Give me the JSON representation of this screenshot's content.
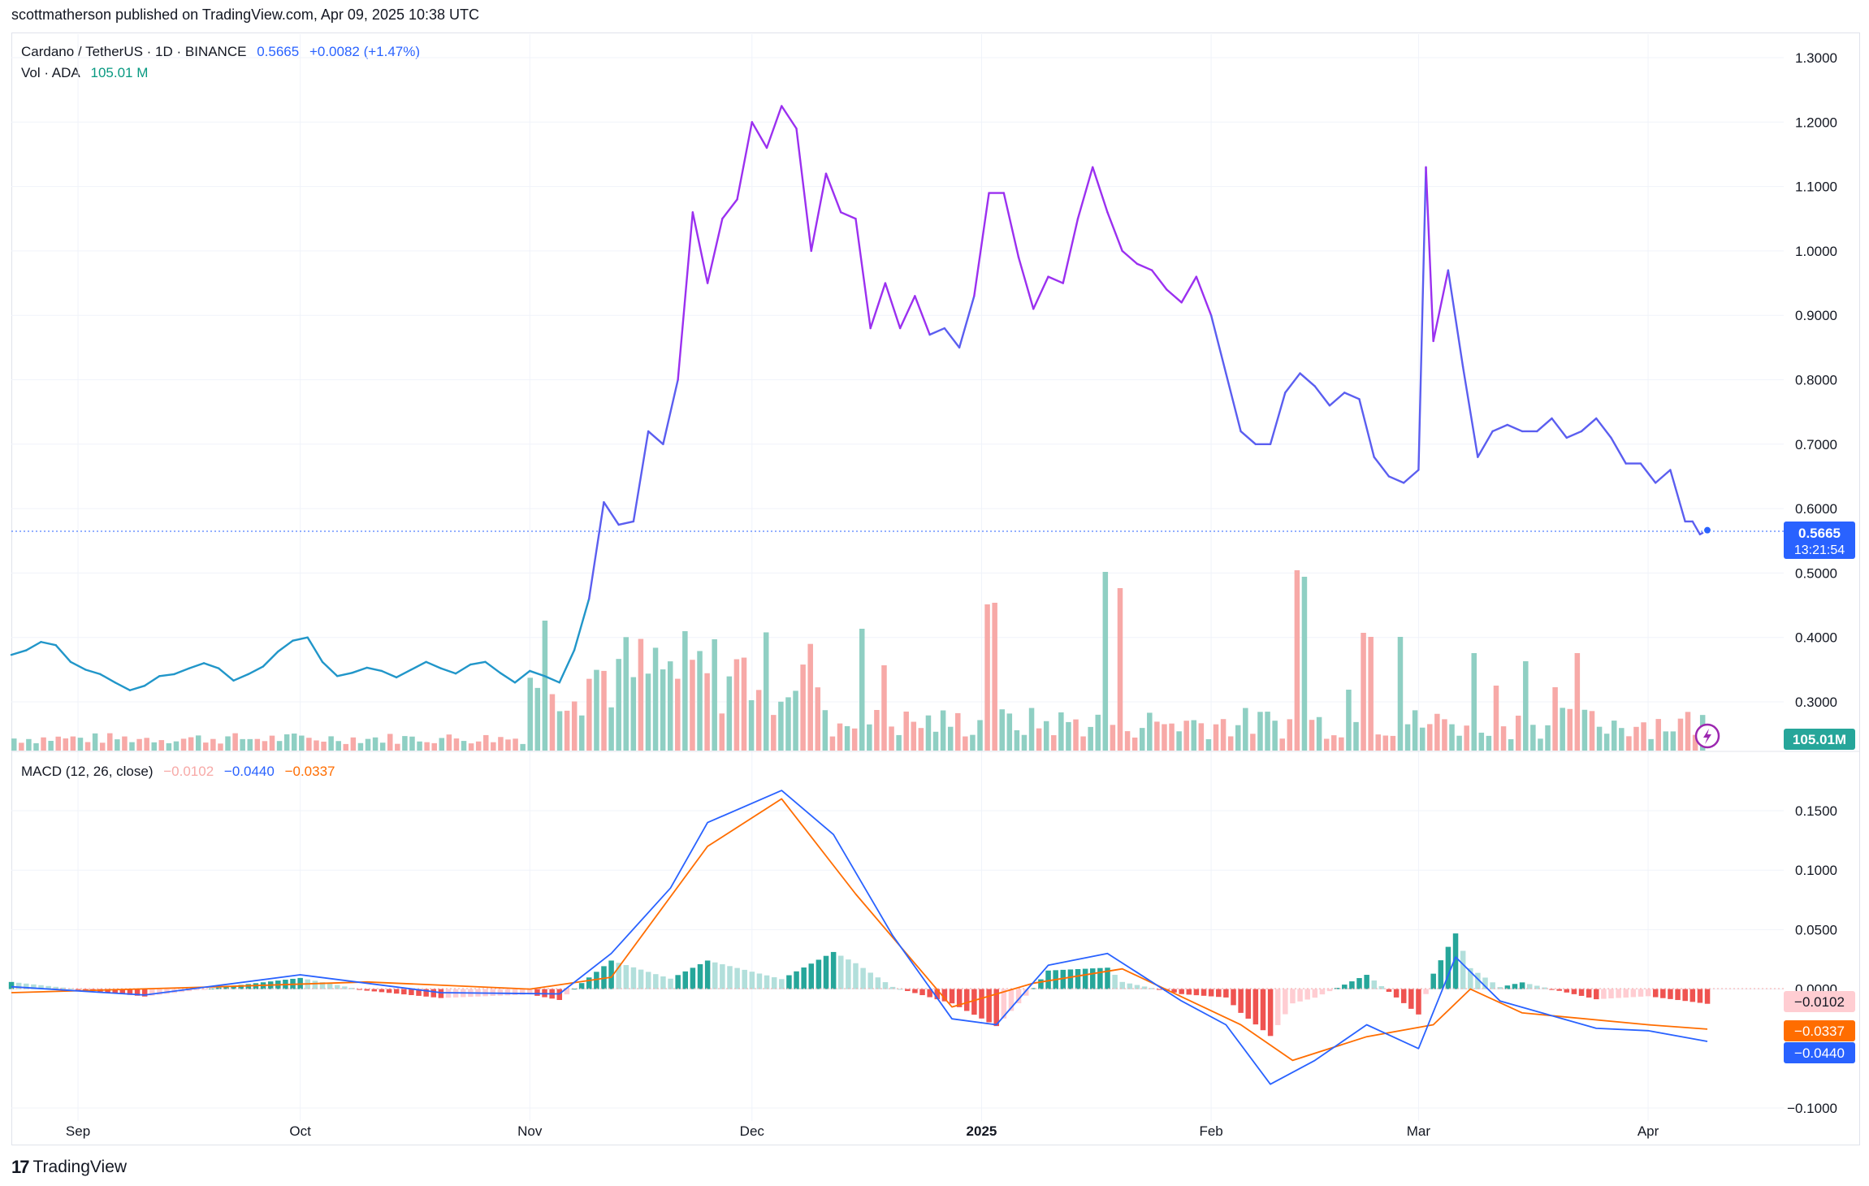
{
  "header": {
    "publish_line": "scottmatherson published on TradingView.com, Apr 09, 2025 10:38 UTC"
  },
  "legend": {
    "symbol": "Cardano / TetherUS · 1D · BINANCE",
    "price": "0.5665",
    "change": "+0.0082 (+1.47%)",
    "vol_label": "Vol · ADA",
    "vol_value": "105.01 M",
    "macd_label": "MACD (12, 26, close)",
    "macd_hist": "−0.0102",
    "macd_line": "−0.0440",
    "macd_signal": "−0.0337"
  },
  "price_badge": {
    "price": "0.5665",
    "countdown": "13:21:54"
  },
  "vol_badge": "105.01M",
  "macd_badges": {
    "hist": "−0.0102",
    "signal": "−0.0337",
    "macd": "−0.0440"
  },
  "footer": {
    "brand": "TradingView",
    "logo_mark": "17"
  },
  "colors": {
    "price_low": "#2196c9",
    "price_mid": "#5b5ef0",
    "price_high": "#9b30f0",
    "vol_up": "#8fcfc3",
    "vol_down": "#f7a9a7",
    "macd_line": "#2962ff",
    "signal_line": "#ff6d00",
    "hist_up_strong": "#26a69a",
    "hist_up_weak": "#b2dfdb",
    "hist_down_strong": "#ef5350",
    "hist_down_weak": "#ffcdd2"
  },
  "chart_data": {
    "type": "line",
    "title": "Cardano / TetherUS · 1D · BINANCE",
    "x_axis": {
      "labels": [
        "Sep",
        "Oct",
        "Nov",
        "Dec",
        "2025",
        "Feb",
        "Mar",
        "Apr"
      ]
    },
    "price_axis": {
      "ticks": [
        "1.3000",
        "1.2000",
        "1.1000",
        "1.0000",
        "0.9000",
        "0.8000",
        "0.7000",
        "0.6000",
        "0.5000",
        "0.4000",
        "0.3000"
      ],
      "ylim": [
        0.25,
        1.32
      ]
    },
    "macd_axis": {
      "ticks": [
        "0.1500",
        "0.1000",
        "0.0500",
        "0.0000",
        "−0.1000"
      ],
      "ylim": [
        -0.1,
        0.17
      ]
    },
    "last_price": 0.5665,
    "price_series": [
      {
        "x": "2024-08-23",
        "y": 0.373
      },
      {
        "x": "2024-08-25",
        "y": 0.38
      },
      {
        "x": "2024-08-27",
        "y": 0.393
      },
      {
        "x": "2024-08-29",
        "y": 0.388
      },
      {
        "x": "2024-08-31",
        "y": 0.362
      },
      {
        "x": "2024-09-02",
        "y": 0.35
      },
      {
        "x": "2024-09-04",
        "y": 0.343
      },
      {
        "x": "2024-09-06",
        "y": 0.33
      },
      {
        "x": "2024-09-08",
        "y": 0.318
      },
      {
        "x": "2024-09-10",
        "y": 0.325
      },
      {
        "x": "2024-09-12",
        "y": 0.34
      },
      {
        "x": "2024-09-14",
        "y": 0.343
      },
      {
        "x": "2024-09-16",
        "y": 0.352
      },
      {
        "x": "2024-09-18",
        "y": 0.36
      },
      {
        "x": "2024-09-20",
        "y": 0.352
      },
      {
        "x": "2024-09-22",
        "y": 0.333
      },
      {
        "x": "2024-09-24",
        "y": 0.343
      },
      {
        "x": "2024-09-26",
        "y": 0.355
      },
      {
        "x": "2024-09-28",
        "y": 0.378
      },
      {
        "x": "2024-09-30",
        "y": 0.395
      },
      {
        "x": "2024-10-02",
        "y": 0.4
      },
      {
        "x": "2024-10-04",
        "y": 0.362
      },
      {
        "x": "2024-10-06",
        "y": 0.34
      },
      {
        "x": "2024-10-08",
        "y": 0.345
      },
      {
        "x": "2024-10-10",
        "y": 0.353
      },
      {
        "x": "2024-10-12",
        "y": 0.348
      },
      {
        "x": "2024-10-14",
        "y": 0.338
      },
      {
        "x": "2024-10-16",
        "y": 0.35
      },
      {
        "x": "2024-10-18",
        "y": 0.362
      },
      {
        "x": "2024-10-20",
        "y": 0.352
      },
      {
        "x": "2024-10-22",
        "y": 0.344
      },
      {
        "x": "2024-10-24",
        "y": 0.358
      },
      {
        "x": "2024-10-26",
        "y": 0.362
      },
      {
        "x": "2024-10-28",
        "y": 0.345
      },
      {
        "x": "2024-10-30",
        "y": 0.33
      },
      {
        "x": "2024-11-01",
        "y": 0.348
      },
      {
        "x": "2024-11-03",
        "y": 0.34
      },
      {
        "x": "2024-11-05",
        "y": 0.33
      },
      {
        "x": "2024-11-07",
        "y": 0.38
      },
      {
        "x": "2024-11-09",
        "y": 0.46
      },
      {
        "x": "2024-11-11",
        "y": 0.61
      },
      {
        "x": "2024-11-13",
        "y": 0.575
      },
      {
        "x": "2024-11-15",
        "y": 0.58
      },
      {
        "x": "2024-11-17",
        "y": 0.72
      },
      {
        "x": "2024-11-19",
        "y": 0.7
      },
      {
        "x": "2024-11-21",
        "y": 0.8
      },
      {
        "x": "2024-11-23",
        "y": 1.06
      },
      {
        "x": "2024-11-25",
        "y": 0.95
      },
      {
        "x": "2024-11-27",
        "y": 1.05
      },
      {
        "x": "2024-11-29",
        "y": 1.08
      },
      {
        "x": "2024-12-01",
        "y": 1.2
      },
      {
        "x": "2024-12-03",
        "y": 1.16
      },
      {
        "x": "2024-12-05",
        "y": 1.225
      },
      {
        "x": "2024-12-07",
        "y": 1.19
      },
      {
        "x": "2024-12-09",
        "y": 1.0
      },
      {
        "x": "2024-12-11",
        "y": 1.12
      },
      {
        "x": "2024-12-13",
        "y": 1.06
      },
      {
        "x": "2024-12-15",
        "y": 1.05
      },
      {
        "x": "2024-12-17",
        "y": 0.88
      },
      {
        "x": "2024-12-19",
        "y": 0.95
      },
      {
        "x": "2024-12-21",
        "y": 0.88
      },
      {
        "x": "2024-12-23",
        "y": 0.93
      },
      {
        "x": "2024-12-25",
        "y": 0.87
      },
      {
        "x": "2024-12-27",
        "y": 0.88
      },
      {
        "x": "2024-12-29",
        "y": 0.85
      },
      {
        "x": "2024-12-31",
        "y": 0.93
      },
      {
        "x": "2025-01-02",
        "y": 1.09
      },
      {
        "x": "2025-01-04",
        "y": 1.09
      },
      {
        "x": "2025-01-06",
        "y": 0.99
      },
      {
        "x": "2025-01-08",
        "y": 0.91
      },
      {
        "x": "2025-01-10",
        "y": 0.96
      },
      {
        "x": "2025-01-12",
        "y": 0.95
      },
      {
        "x": "2025-01-14",
        "y": 1.05
      },
      {
        "x": "2025-01-16",
        "y": 1.13
      },
      {
        "x": "2025-01-18",
        "y": 1.06
      },
      {
        "x": "2025-01-20",
        "y": 1.0
      },
      {
        "x": "2025-01-22",
        "y": 0.98
      },
      {
        "x": "2025-01-24",
        "y": 0.97
      },
      {
        "x": "2025-01-26",
        "y": 0.94
      },
      {
        "x": "2025-01-28",
        "y": 0.92
      },
      {
        "x": "2025-01-30",
        "y": 0.96
      },
      {
        "x": "2025-02-01",
        "y": 0.9
      },
      {
        "x": "2025-02-03",
        "y": 0.81
      },
      {
        "x": "2025-02-05",
        "y": 0.72
      },
      {
        "x": "2025-02-07",
        "y": 0.7
      },
      {
        "x": "2025-02-09",
        "y": 0.7
      },
      {
        "x": "2025-02-11",
        "y": 0.78
      },
      {
        "x": "2025-02-13",
        "y": 0.81
      },
      {
        "x": "2025-02-15",
        "y": 0.79
      },
      {
        "x": "2025-02-17",
        "y": 0.76
      },
      {
        "x": "2025-02-19",
        "y": 0.78
      },
      {
        "x": "2025-02-21",
        "y": 0.77
      },
      {
        "x": "2025-02-23",
        "y": 0.68
      },
      {
        "x": "2025-02-25",
        "y": 0.65
      },
      {
        "x": "2025-02-27",
        "y": 0.64
      },
      {
        "x": "2025-03-01",
        "y": 0.66
      },
      {
        "x": "2025-03-02",
        "y": 1.13
      },
      {
        "x": "2025-03-03",
        "y": 0.86
      },
      {
        "x": "2025-03-05",
        "y": 0.97
      },
      {
        "x": "2025-03-07",
        "y": 0.82
      },
      {
        "x": "2025-03-09",
        "y": 0.68
      },
      {
        "x": "2025-03-11",
        "y": 0.72
      },
      {
        "x": "2025-03-13",
        "y": 0.73
      },
      {
        "x": "2025-03-15",
        "y": 0.72
      },
      {
        "x": "2025-03-17",
        "y": 0.72
      },
      {
        "x": "2025-03-19",
        "y": 0.74
      },
      {
        "x": "2025-03-21",
        "y": 0.71
      },
      {
        "x": "2025-03-23",
        "y": 0.72
      },
      {
        "x": "2025-03-25",
        "y": 0.74
      },
      {
        "x": "2025-03-27",
        "y": 0.71
      },
      {
        "x": "2025-03-29",
        "y": 0.67
      },
      {
        "x": "2025-03-31",
        "y": 0.67
      },
      {
        "x": "2025-04-02",
        "y": 0.64
      },
      {
        "x": "2025-04-04",
        "y": 0.66
      },
      {
        "x": "2025-04-06",
        "y": 0.58
      },
      {
        "x": "2025-04-07",
        "y": 0.58
      },
      {
        "x": "2025-04-08",
        "y": 0.56
      },
      {
        "x": "2025-04-09",
        "y": 0.5665
      }
    ],
    "macd_series": {
      "macd": [
        {
          "x": "2024-08-23",
          "y": 0.002
        },
        {
          "x": "2024-09-10",
          "y": -0.005
        },
        {
          "x": "2024-10-01",
          "y": 0.012
        },
        {
          "x": "2024-10-20",
          "y": -0.003
        },
        {
          "x": "2024-11-05",
          "y": -0.004
        },
        {
          "x": "2024-11-12",
          "y": 0.03
        },
        {
          "x": "2024-11-20",
          "y": 0.085
        },
        {
          "x": "2024-11-25",
          "y": 0.14
        },
        {
          "x": "2024-12-05",
          "y": 0.167
        },
        {
          "x": "2024-12-12",
          "y": 0.13
        },
        {
          "x": "2024-12-20",
          "y": 0.045
        },
        {
          "x": "2024-12-28",
          "y": -0.025
        },
        {
          "x": "2025-01-03",
          "y": -0.03
        },
        {
          "x": "2025-01-10",
          "y": 0.02
        },
        {
          "x": "2025-01-18",
          "y": 0.03
        },
        {
          "x": "2025-01-28",
          "y": -0.01
        },
        {
          "x": "2025-02-03",
          "y": -0.03
        },
        {
          "x": "2025-02-09",
          "y": -0.08
        },
        {
          "x": "2025-02-15",
          "y": -0.06
        },
        {
          "x": "2025-02-22",
          "y": -0.03
        },
        {
          "x": "2025-03-01",
          "y": -0.05
        },
        {
          "x": "2025-03-06",
          "y": 0.027
        },
        {
          "x": "2025-03-12",
          "y": -0.01
        },
        {
          "x": "2025-03-25",
          "y": -0.033
        },
        {
          "x": "2025-04-01",
          "y": -0.035
        },
        {
          "x": "2025-04-09",
          "y": -0.044
        }
      ],
      "signal": [
        {
          "x": "2024-08-23",
          "y": -0.003
        },
        {
          "x": "2024-09-20",
          "y": 0.002
        },
        {
          "x": "2024-10-10",
          "y": 0.006
        },
        {
          "x": "2024-11-01",
          "y": 0.0
        },
        {
          "x": "2024-11-12",
          "y": 0.01
        },
        {
          "x": "2024-11-25",
          "y": 0.12
        },
        {
          "x": "2024-12-05",
          "y": 0.16
        },
        {
          "x": "2024-12-15",
          "y": 0.08
        },
        {
          "x": "2024-12-28",
          "y": -0.015
        },
        {
          "x": "2025-01-08",
          "y": 0.005
        },
        {
          "x": "2025-01-20",
          "y": 0.017
        },
        {
          "x": "2025-02-05",
          "y": -0.03
        },
        {
          "x": "2025-02-12",
          "y": -0.06
        },
        {
          "x": "2025-02-22",
          "y": -0.04
        },
        {
          "x": "2025-03-03",
          "y": -0.03
        },
        {
          "x": "2025-03-08",
          "y": 0.0
        },
        {
          "x": "2025-03-15",
          "y": -0.02
        },
        {
          "x": "2025-04-01",
          "y": -0.03
        },
        {
          "x": "2025-04-09",
          "y": -0.0337
        }
      ],
      "histogram_last": -0.0102
    },
    "volume_last": "105.01M"
  }
}
